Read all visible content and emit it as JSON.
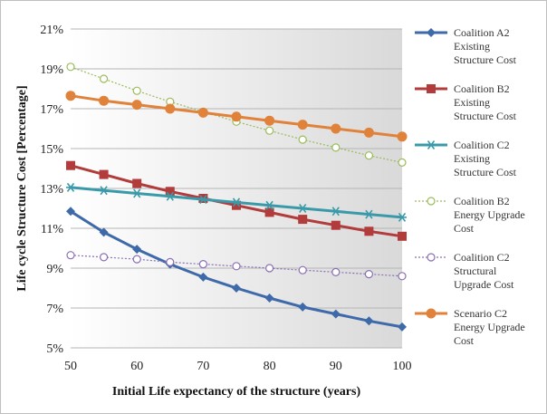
{
  "chart_data": {
    "type": "line",
    "xlabel": "Initial Life expectancy of the structure (years)",
    "ylabel": "Life cycle Structure Cost  [Percentage]",
    "x": [
      50,
      55,
      60,
      65,
      70,
      75,
      80,
      85,
      90,
      95,
      100
    ],
    "xticks": [
      50,
      60,
      70,
      80,
      90,
      100
    ],
    "xlim": [
      50,
      100
    ],
    "ylim": [
      5,
      21
    ],
    "yticks": [
      5,
      7,
      9,
      11,
      13,
      15,
      17,
      19,
      21
    ],
    "ytick_suffix": "%",
    "legend_position": "right",
    "plot_background": "gradient-gray",
    "series": [
      {
        "name_lines": [
          "Coalition A2",
          "Existing",
          "Structure Cost"
        ],
        "values": [
          11.85,
          10.8,
          9.95,
          9.2,
          8.55,
          8.0,
          7.5,
          7.05,
          6.7,
          6.35,
          6.05
        ],
        "color": "#3E6AAA",
        "marker": "diamond",
        "line": "solid"
      },
      {
        "name_lines": [
          "Coalition B2",
          "Existing",
          "Structure Cost"
        ],
        "values": [
          14.15,
          13.7,
          13.25,
          12.85,
          12.5,
          12.15,
          11.8,
          11.45,
          11.15,
          10.85,
          10.6
        ],
        "color": "#B23B3B",
        "marker": "square",
        "line": "solid"
      },
      {
        "name_lines": [
          "Coalition C2",
          "Existing",
          "Structure Cost"
        ],
        "values": [
          13.05,
          12.9,
          12.75,
          12.6,
          12.45,
          12.3,
          12.15,
          12.0,
          11.85,
          11.7,
          11.55
        ],
        "color": "#3A9AAA",
        "marker": "asterisk",
        "line": "solid"
      },
      {
        "name_lines": [
          "Coalition B2",
          "Energy Upgrade",
          "Cost"
        ],
        "values": [
          19.1,
          18.5,
          17.9,
          17.35,
          16.85,
          16.35,
          15.9,
          15.45,
          15.05,
          14.65,
          14.3
        ],
        "color": "#9BBB59",
        "marker": "circle-open",
        "line": "dotted"
      },
      {
        "name_lines": [
          "Coalition C2",
          "Structural",
          "Upgrade Cost"
        ],
        "values": [
          9.65,
          9.55,
          9.45,
          9.3,
          9.2,
          9.1,
          9.0,
          8.9,
          8.8,
          8.7,
          8.6
        ],
        "color": "#8A6FB3",
        "marker": "circle-open",
        "line": "dotted"
      },
      {
        "name_lines": [
          "Scenario C2",
          "Energy Upgrade",
          "Cost"
        ],
        "values": [
          17.65,
          17.4,
          17.2,
          17.0,
          16.8,
          16.6,
          16.4,
          16.2,
          16.0,
          15.8,
          15.6
        ],
        "color": "#E0823A",
        "marker": "circle-filled",
        "line": "solid"
      }
    ]
  }
}
